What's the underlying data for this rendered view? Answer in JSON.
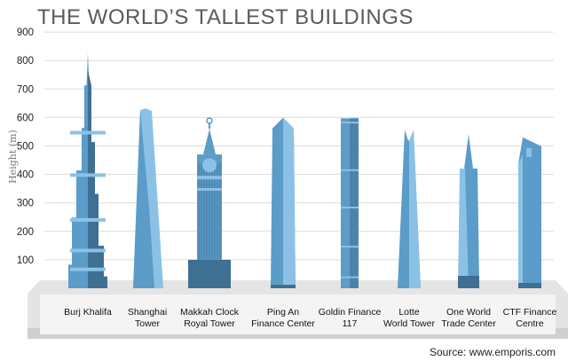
{
  "chart_data": {
    "type": "bar",
    "title": "THE WORLD’S TALLEST BUILDINGS",
    "xlabel": "",
    "ylabel": "Height (m)",
    "ylim": [
      0,
      900
    ],
    "yticks": [
      100,
      200,
      300,
      400,
      500,
      600,
      700,
      800,
      900
    ],
    "grid": true,
    "categories": [
      [
        "Burj Khalifa"
      ],
      [
        "Shanghai",
        "Tower"
      ],
      [
        "Makkah Clock",
        "Royal Tower"
      ],
      [
        "Ping An",
        "Finance Center"
      ],
      [
        "Goldin Finance",
        "117"
      ],
      [
        "Lotte",
        "World Tower"
      ],
      [
        "One World",
        "Trade Center"
      ],
      [
        "CTF Finance",
        "Centre"
      ]
    ],
    "values": [
      828,
      632,
      601,
      599,
      597,
      556,
      541,
      530
    ],
    "source": "Source: www.emporis.com"
  },
  "colors": {
    "light_blue": "#8cc1e6",
    "mid_blue": "#5b9cc9",
    "dark_blue": "#3f6f92",
    "gridline": "#dcdcdc",
    "base": "#dcdcdc"
  }
}
